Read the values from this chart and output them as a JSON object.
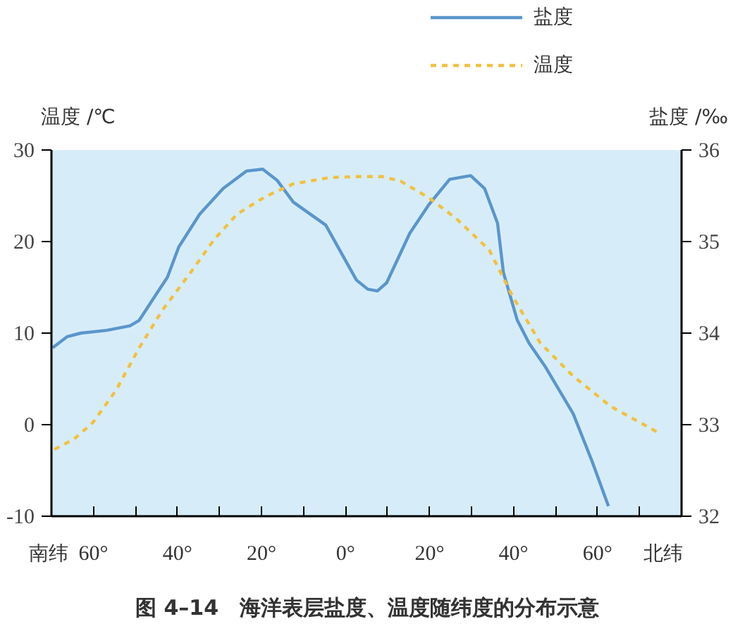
{
  "chart_data": {
    "type": "line",
    "title": "图 4–14　海洋表层盐度、温度随纬度的分布示意",
    "ylabel": "温度 /℃",
    "y2label": "盐度 /‰",
    "annotations": [
      "南纬",
      "北纬"
    ],
    "xlim": [
      -70,
      80
    ],
    "xticks": [
      {
        "value": -60,
        "label": "60°"
      },
      {
        "value": -50,
        "label": null
      },
      {
        "value": -40,
        "label": "40°"
      },
      {
        "value": -30,
        "label": null
      },
      {
        "value": -20,
        "label": "20°"
      },
      {
        "value": -10,
        "label": null
      },
      {
        "value": 0,
        "label": "0°"
      },
      {
        "value": 10,
        "label": null
      },
      {
        "value": 20,
        "label": "20°"
      },
      {
        "value": 30,
        "label": null
      },
      {
        "value": 40,
        "label": "40°"
      },
      {
        "value": 50,
        "label": null
      },
      {
        "value": 60,
        "label": "60°"
      },
      {
        "value": 70,
        "label": null
      }
    ],
    "ylim": [
      -10,
      30
    ],
    "yticks": [
      -10,
      0,
      10,
      20,
      30
    ],
    "y2lim": [
      32,
      36
    ],
    "y2ticks": [
      32,
      33,
      34,
      35,
      36
    ],
    "grid": false,
    "legend": "top",
    "marker": "none",
    "series": [
      {
        "name": "盐度",
        "color": "#5b95cc",
        "axis": "y2",
        "line_style": "solid",
        "x": [
          -69.7,
          -66.3,
          -63,
          -56.9,
          -51.3,
          -49.1,
          -44.7,
          -42.4,
          -39.7,
          -34.7,
          -29.1,
          -23.6,
          -19.7,
          -16.3,
          -12.4,
          -4.7,
          2.6,
          5.3,
          7.6,
          9.8,
          15.3,
          19.8,
          24.8,
          29.8,
          33.1,
          36.2,
          37.6,
          40.9,
          43.7,
          47.6,
          54.2,
          58.7,
          62.6
        ],
        "values": [
          33.84,
          33.96,
          34.0,
          34.03,
          34.08,
          34.14,
          34.45,
          34.61,
          34.94,
          35.3,
          35.58,
          35.77,
          35.79,
          35.67,
          35.43,
          35.18,
          34.58,
          34.48,
          34.46,
          34.55,
          35.09,
          35.4,
          35.68,
          35.72,
          35.58,
          35.2,
          34.66,
          34.14,
          33.89,
          33.63,
          33.12,
          32.6,
          32.11
        ]
      },
      {
        "name": "温度",
        "color": "#f2c040",
        "axis": "y",
        "line_style": "dashed",
        "x": [
          -69.3,
          -64.7,
          -60.2,
          -54.7,
          -49.1,
          -43.6,
          -36.9,
          -31.3,
          -25.8,
          -19.1,
          -12.4,
          -3.6,
          3.1,
          8.7,
          13.1,
          19.8,
          26.4,
          34.2,
          39.8,
          46.4,
          54.2,
          63.1,
          74.2
        ],
        "values": [
          -2.7,
          -1.6,
          0.2,
          3.7,
          8.4,
          12.5,
          16.6,
          20.2,
          23,
          24.9,
          26.3,
          27,
          27.1,
          27.1,
          26.6,
          24.8,
          22.5,
          19.1,
          14,
          8.9,
          5.3,
          2,
          -0.8
        ]
      }
    ]
  }
}
